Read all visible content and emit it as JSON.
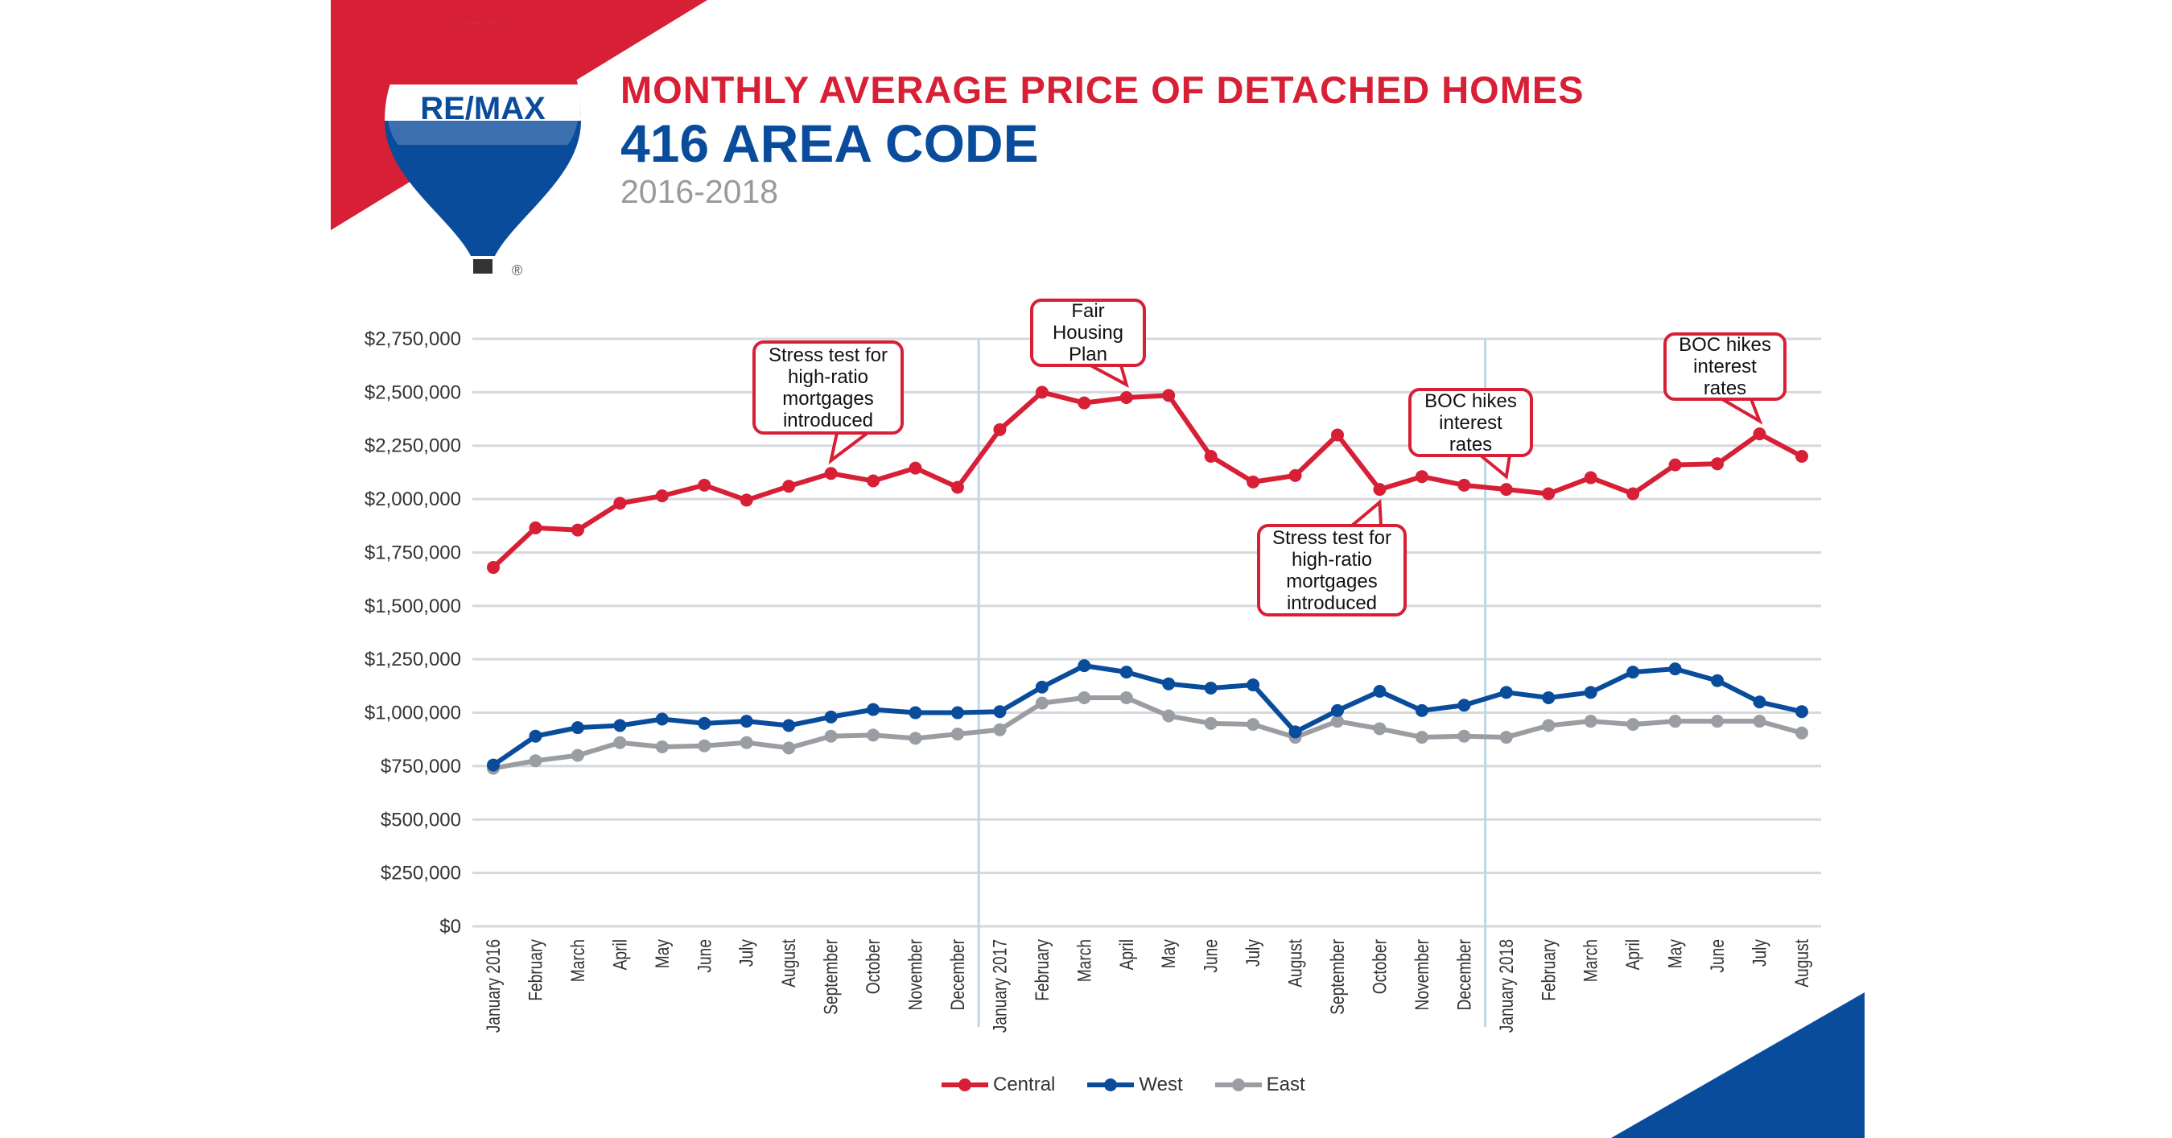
{
  "header": {
    "title": "MONTHLY AVERAGE PRICE OF DETACHED HOMES",
    "subtitle": "416 AREA CODE",
    "years": "2016-2018",
    "logo_text": "RE/MAX"
  },
  "colors": {
    "central": "#d71f35",
    "west": "#0a4c9c",
    "east": "#9a9da1",
    "brand_red": "#d71f35",
    "brand_blue": "#0a4c9c",
    "year_divider": "#bcd8e8"
  },
  "chart_data": {
    "type": "line",
    "title": "MONTHLY AVERAGE PRICE OF DETACHED HOMES",
    "xlabel": "",
    "ylabel": "",
    "ylim": [
      0,
      2750000
    ],
    "yticks": [
      "$0",
      "$250,000",
      "$500,000",
      "$750,000",
      "$1,000,000",
      "$1,250,000",
      "$1,500,000",
      "$1,750,000",
      "$2,000,000",
      "$2,250,000",
      "$2,500,000",
      "$2,750,000"
    ],
    "grid": true,
    "legend_position": "bottom",
    "categories": [
      "January 2016",
      "February",
      "March",
      "April",
      "May",
      "June",
      "July",
      "August",
      "September",
      "October",
      "November",
      "December",
      "January 2017",
      "February",
      "March",
      "April",
      "May",
      "June",
      "July",
      "August",
      "September",
      "October",
      "November",
      "December",
      "January 2018",
      "February",
      "March",
      "April",
      "May",
      "June",
      "July",
      "August"
    ],
    "series": [
      {
        "name": "Central",
        "values": [
          1680000,
          1865000,
          1855000,
          1980000,
          2015000,
          2065000,
          1995000,
          2060000,
          2120000,
          2085000,
          2145000,
          2055000,
          2325000,
          2500000,
          2450000,
          2475000,
          2485000,
          2200000,
          2080000,
          2110000,
          2300000,
          2045000,
          2105000,
          2065000,
          2045000,
          2025000,
          2100000,
          2025000,
          2160000,
          2165000,
          2305000,
          2200000
        ]
      },
      {
        "name": "West",
        "values": [
          755000,
          890000,
          930000,
          940000,
          970000,
          950000,
          960000,
          940000,
          980000,
          1015000,
          1000000,
          1000000,
          1005000,
          1120000,
          1220000,
          1190000,
          1135000,
          1115000,
          1130000,
          910000,
          1010000,
          1100000,
          1010000,
          1035000,
          1095000,
          1070000,
          1095000,
          1190000,
          1205000,
          1150000,
          1050000,
          1005000
        ]
      },
      {
        "name": "East",
        "values": [
          740000,
          775000,
          800000,
          860000,
          840000,
          845000,
          860000,
          835000,
          890000,
          895000,
          880000,
          900000,
          920000,
          1045000,
          1070000,
          1070000,
          985000,
          950000,
          945000,
          885000,
          960000,
          925000,
          885000,
          890000,
          885000,
          940000,
          960000,
          945000,
          960000,
          960000,
          960000,
          905000
        ]
      }
    ],
    "annotations": [
      {
        "text": "Stress test for high-ratio mortgages introduced",
        "category": "September",
        "year": "2016"
      },
      {
        "text": "Fair Housing Plan",
        "category": "April",
        "year": "2017"
      },
      {
        "text": "Stress test for high-ratio mortgages introduced",
        "category": "October",
        "year": "2017"
      },
      {
        "text": "BOC hikes interest rates",
        "category": "January 2018",
        "year": "2018"
      },
      {
        "text": "BOC hikes interest rates",
        "category": "July",
        "year": "2018"
      }
    ]
  }
}
